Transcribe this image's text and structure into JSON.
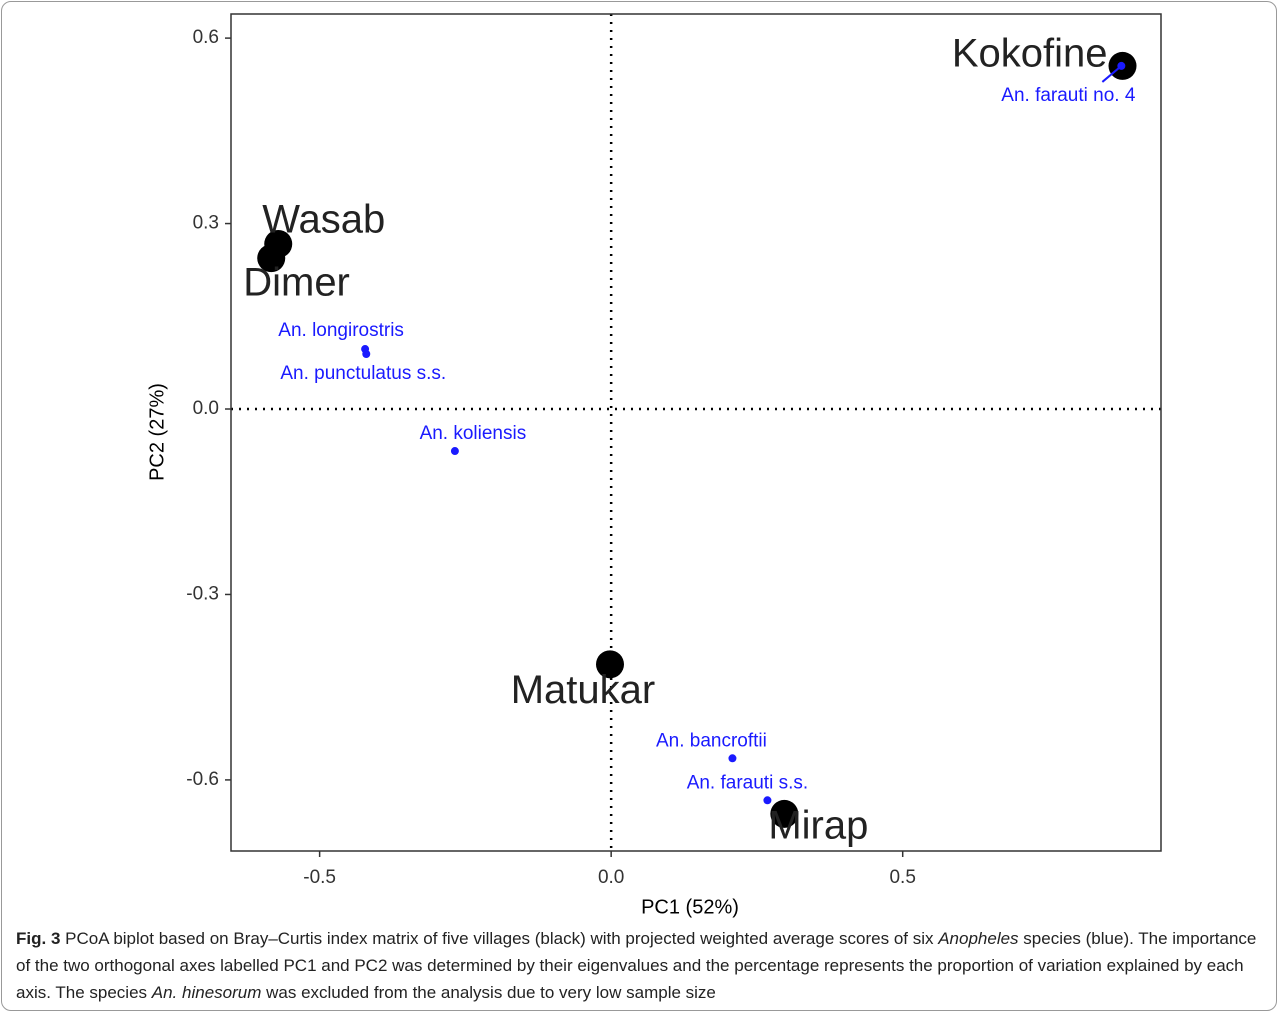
{
  "chart_data": {
    "type": "scatter",
    "x_label": "PC1 (52%)",
    "y_label": "PC2 (27%)",
    "xlim": [
      -0.652,
      0.943
    ],
    "ylim": [
      -0.715,
      0.639
    ],
    "xticks": [
      -0.5,
      {
        "value": 0,
        "label": "0.0"
      },
      0.5
    ],
    "yticks": [
      0.6,
      0.3,
      {
        "value": 0,
        "label": "0.0"
      },
      -0.3,
      -0.6
    ],
    "zero_lines": true,
    "series": [
      {
        "color": "#000000",
        "labels": [
          "Kokofine",
          "Wasab",
          "Dimer",
          "Matukar",
          "Mirap"
        ],
        "x": [
          0.877,
          -0.571,
          -0.583,
          -0.002,
          0.297
        ],
        "values": [
          0.555,
          0.267,
          0.244,
          -0.413,
          -0.655
        ]
      },
      {
        "color": "#1a1aff",
        "labels": [
          "An. farauti no. 4",
          "An. longirostris",
          "An. punctulatus s.s.",
          "An. koliensis",
          "An. bancroftii",
          "An. farauti s.s."
        ],
        "x": [
          0.875,
          -0.422,
          -0.42,
          -0.268,
          0.208,
          0.268
        ],
        "values": [
          0.555,
          0.097,
          0.089,
          -0.068,
          -0.565,
          -0.633
        ]
      }
    ]
  },
  "caption": {
    "label": "Fig. 3",
    "segments": [
      " PCoA biplot based on Bray–Curtis index matrix of five villages (black) with projected weighted average scores of six ",
      "Anopheles",
      " species (blue). The importance of the two orthogonal axes labelled PC1 and PC2 was determined by their eigenvalues and the percentage represents the proportion of variation explained by each axis. The species ",
      "An. hinesorum",
      " was excluded from the analysis due to very low sample size"
    ]
  }
}
